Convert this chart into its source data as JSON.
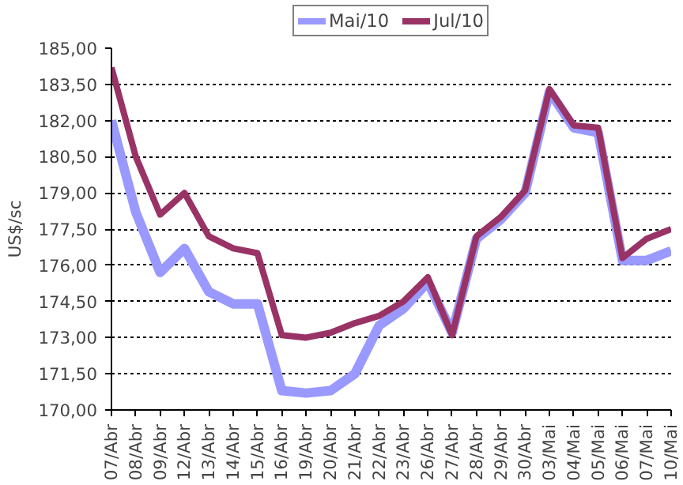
{
  "chart_data": {
    "type": "line",
    "ylabel": "US$/sc",
    "categories": [
      "07/Abr",
      "08/Abr",
      "09/Abr",
      "12/Abr",
      "13/Abr",
      "14/Abr",
      "15/Abr",
      "16/Abr",
      "19/Abr",
      "20/Abr",
      "21/Abr",
      "22/Abr",
      "23/Abr",
      "26/Abr",
      "27/Abr",
      "28/Abr",
      "29/Abr",
      "30/Abr",
      "03/Mai",
      "04/Mai",
      "05/Mai",
      "06/Mai",
      "07/Mai",
      "10/Mai"
    ],
    "series": [
      {
        "name": "Mai/10",
        "color": "#9999ff",
        "values": [
          182.0,
          178.2,
          175.7,
          176.7,
          174.9,
          174.4,
          174.4,
          170.8,
          170.7,
          170.8,
          171.5,
          173.5,
          174.2,
          175.3,
          173.2,
          177.1,
          177.9,
          179.0,
          183.2,
          181.7,
          181.5,
          176.2,
          176.2,
          176.6
        ]
      },
      {
        "name": "Jul/10",
        "color": "#993366",
        "values": [
          184.2,
          180.5,
          178.1,
          179.0,
          177.2,
          176.7,
          176.5,
          173.1,
          173.0,
          173.2,
          173.6,
          173.9,
          174.5,
          175.5,
          173.1,
          177.2,
          178.0,
          179.1,
          183.3,
          181.8,
          181.7,
          176.3,
          177.1,
          177.5
        ]
      }
    ],
    "ylim": [
      170,
      185
    ],
    "yticks": [
      {
        "value": 170,
        "label": "170,00"
      },
      {
        "value": 171.5,
        "label": "171,50"
      },
      {
        "value": 173,
        "label": "173,00"
      },
      {
        "value": 174.5,
        "label": "174,50"
      },
      {
        "value": 176,
        "label": "176,00"
      },
      {
        "value": 177.5,
        "label": "177,50"
      },
      {
        "value": 179,
        "label": "179,00"
      },
      {
        "value": 180.5,
        "label": "180,50"
      },
      {
        "value": 182,
        "label": "182,00"
      },
      {
        "value": 183.5,
        "label": "183,50"
      },
      {
        "value": 185,
        "label": "185,00"
      }
    ],
    "grid": "y",
    "legend": "top",
    "line_style": "solid",
    "marker": "none"
  }
}
